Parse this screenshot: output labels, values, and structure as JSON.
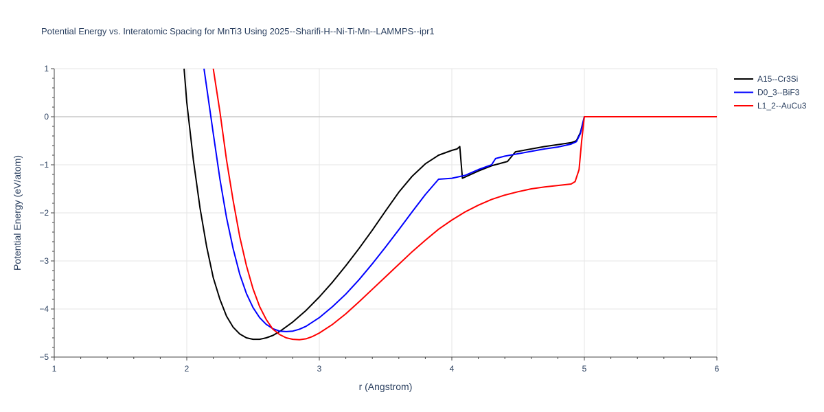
{
  "chart_data": {
    "type": "line",
    "title": "Potential Energy vs. Interatomic Spacing for MnTi3 Using 2025--Sharifi-H--Ni-Ti-Mn--LAMMPS--ipr1",
    "xlabel": "r (Angstrom)",
    "ylabel": "Potential Energy (eV/atom)",
    "xlim": [
      1,
      6
    ],
    "ylim": [
      -5,
      1
    ],
    "xticks": [
      1,
      2,
      3,
      4,
      5,
      6
    ],
    "xtick_labels": [
      "1",
      "2",
      "3",
      "4",
      "5",
      "6"
    ],
    "yticks": [
      1,
      0,
      -1,
      -2,
      -3,
      -4,
      -5
    ],
    "ytick_labels": [
      "1",
      "0",
      "−1",
      "−2",
      "−3",
      "−4",
      "−5"
    ],
    "grid": true,
    "legend_position": "top-right",
    "series": [
      {
        "name": "A15--Cr3Si",
        "color": "#000000",
        "points": [
          [
            1.98,
            1.0
          ],
          [
            2.0,
            0.3
          ],
          [
            2.05,
            -0.9
          ],
          [
            2.1,
            -1.9
          ],
          [
            2.15,
            -2.7
          ],
          [
            2.2,
            -3.35
          ],
          [
            2.25,
            -3.8
          ],
          [
            2.3,
            -4.15
          ],
          [
            2.35,
            -4.38
          ],
          [
            2.4,
            -4.52
          ],
          [
            2.45,
            -4.6
          ],
          [
            2.5,
            -4.63
          ],
          [
            2.55,
            -4.63
          ],
          [
            2.6,
            -4.6
          ],
          [
            2.65,
            -4.55
          ],
          [
            2.7,
            -4.47
          ],
          [
            2.8,
            -4.27
          ],
          [
            2.9,
            -4.03
          ],
          [
            3.0,
            -3.75
          ],
          [
            3.1,
            -3.44
          ],
          [
            3.2,
            -3.1
          ],
          [
            3.3,
            -2.74
          ],
          [
            3.4,
            -2.36
          ],
          [
            3.5,
            -1.96
          ],
          [
            3.6,
            -1.57
          ],
          [
            3.7,
            -1.24
          ],
          [
            3.8,
            -0.98
          ],
          [
            3.9,
            -0.8
          ],
          [
            4.0,
            -0.7
          ],
          [
            4.04,
            -0.67
          ],
          [
            4.06,
            -0.62
          ],
          [
            4.08,
            -1.28
          ],
          [
            4.2,
            -1.13
          ],
          [
            4.3,
            -1.02
          ],
          [
            4.42,
            -0.93
          ],
          [
            4.48,
            -0.73
          ],
          [
            4.6,
            -0.67
          ],
          [
            4.7,
            -0.62
          ],
          [
            4.8,
            -0.58
          ],
          [
            4.9,
            -0.54
          ],
          [
            4.94,
            -0.5
          ],
          [
            4.97,
            -0.33
          ],
          [
            5.0,
            0
          ],
          [
            6.0,
            0
          ]
        ]
      },
      {
        "name": "D0_3--BiF3",
        "color": "#0000ff",
        "points": [
          [
            2.13,
            1.0
          ],
          [
            2.2,
            -0.35
          ],
          [
            2.25,
            -1.3
          ],
          [
            2.3,
            -2.1
          ],
          [
            2.35,
            -2.75
          ],
          [
            2.4,
            -3.28
          ],
          [
            2.45,
            -3.68
          ],
          [
            2.5,
            -3.97
          ],
          [
            2.55,
            -4.18
          ],
          [
            2.6,
            -4.32
          ],
          [
            2.65,
            -4.41
          ],
          [
            2.7,
            -4.46
          ],
          [
            2.75,
            -4.47
          ],
          [
            2.8,
            -4.46
          ],
          [
            2.85,
            -4.42
          ],
          [
            2.9,
            -4.36
          ],
          [
            3.0,
            -4.18
          ],
          [
            3.1,
            -3.95
          ],
          [
            3.2,
            -3.69
          ],
          [
            3.3,
            -3.39
          ],
          [
            3.4,
            -3.06
          ],
          [
            3.5,
            -2.71
          ],
          [
            3.6,
            -2.35
          ],
          [
            3.7,
            -1.98
          ],
          [
            3.8,
            -1.62
          ],
          [
            3.9,
            -1.3
          ],
          [
            4.0,
            -1.28
          ],
          [
            4.1,
            -1.22
          ],
          [
            4.2,
            -1.1
          ],
          [
            4.3,
            -1.0
          ],
          [
            4.33,
            -0.87
          ],
          [
            4.4,
            -0.82
          ],
          [
            4.5,
            -0.77
          ],
          [
            4.6,
            -0.72
          ],
          [
            4.7,
            -0.67
          ],
          [
            4.8,
            -0.63
          ],
          [
            4.9,
            -0.57
          ],
          [
            4.94,
            -0.52
          ],
          [
            4.97,
            -0.35
          ],
          [
            5.0,
            0
          ],
          [
            6.0,
            0
          ]
        ]
      },
      {
        "name": "L1_2--AuCu3",
        "color": "#ff0000",
        "points": [
          [
            2.2,
            1.0
          ],
          [
            2.25,
            0.1
          ],
          [
            2.3,
            -0.9
          ],
          [
            2.35,
            -1.75
          ],
          [
            2.4,
            -2.5
          ],
          [
            2.45,
            -3.1
          ],
          [
            2.5,
            -3.58
          ],
          [
            2.55,
            -3.95
          ],
          [
            2.6,
            -4.22
          ],
          [
            2.65,
            -4.42
          ],
          [
            2.7,
            -4.53
          ],
          [
            2.75,
            -4.6
          ],
          [
            2.8,
            -4.63
          ],
          [
            2.85,
            -4.64
          ],
          [
            2.9,
            -4.62
          ],
          [
            2.95,
            -4.57
          ],
          [
            3.0,
            -4.5
          ],
          [
            3.1,
            -4.32
          ],
          [
            3.2,
            -4.1
          ],
          [
            3.3,
            -3.85
          ],
          [
            3.4,
            -3.59
          ],
          [
            3.5,
            -3.33
          ],
          [
            3.6,
            -3.07
          ],
          [
            3.7,
            -2.81
          ],
          [
            3.8,
            -2.57
          ],
          [
            3.9,
            -2.34
          ],
          [
            4.0,
            -2.15
          ],
          [
            4.1,
            -1.98
          ],
          [
            4.2,
            -1.84
          ],
          [
            4.3,
            -1.72
          ],
          [
            4.4,
            -1.63
          ],
          [
            4.5,
            -1.56
          ],
          [
            4.6,
            -1.5
          ],
          [
            4.7,
            -1.46
          ],
          [
            4.8,
            -1.43
          ],
          [
            4.9,
            -1.4
          ],
          [
            4.93,
            -1.35
          ],
          [
            4.96,
            -1.1
          ],
          [
            4.98,
            -0.5
          ],
          [
            5.0,
            0
          ],
          [
            6.0,
            0
          ]
        ]
      }
    ]
  }
}
